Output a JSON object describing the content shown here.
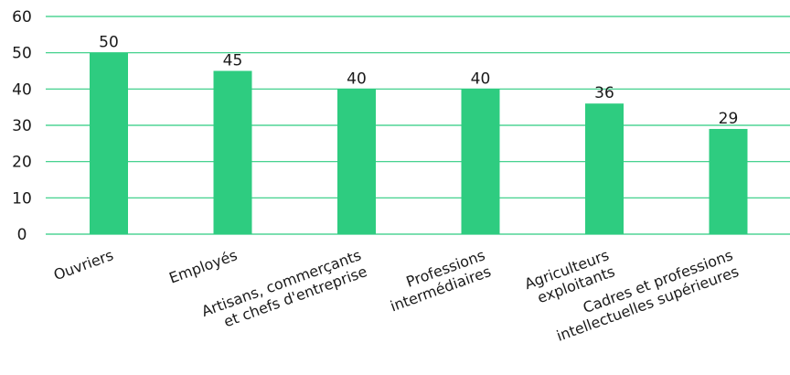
{
  "chart_data": {
    "type": "bar",
    "categories": [
      [
        "Ouvriers"
      ],
      [
        "Employés"
      ],
      [
        "Artisans,  commerçants",
        "et chefs d'entreprise"
      ],
      [
        "Professions",
        "intermédiaires"
      ],
      [
        "Agriculteurs",
        "exploitants"
      ],
      [
        "Cadres et professions",
        "intellectuelles supérieures"
      ]
    ],
    "values": [
      50,
      45,
      40,
      40,
      36,
      29
    ],
    "data_labels": [
      "50",
      "45",
      "40",
      "40",
      "36",
      "29"
    ],
    "ylim": [
      0,
      60
    ],
    "yticks": [
      0,
      10,
      20,
      30,
      40,
      50,
      60
    ],
    "grid": true,
    "title": "",
    "xlabel": "",
    "ylabel": "",
    "colors": {
      "bar": "#2ecc80",
      "grid": "#2ecc80",
      "text": "#1a1a1a"
    }
  }
}
